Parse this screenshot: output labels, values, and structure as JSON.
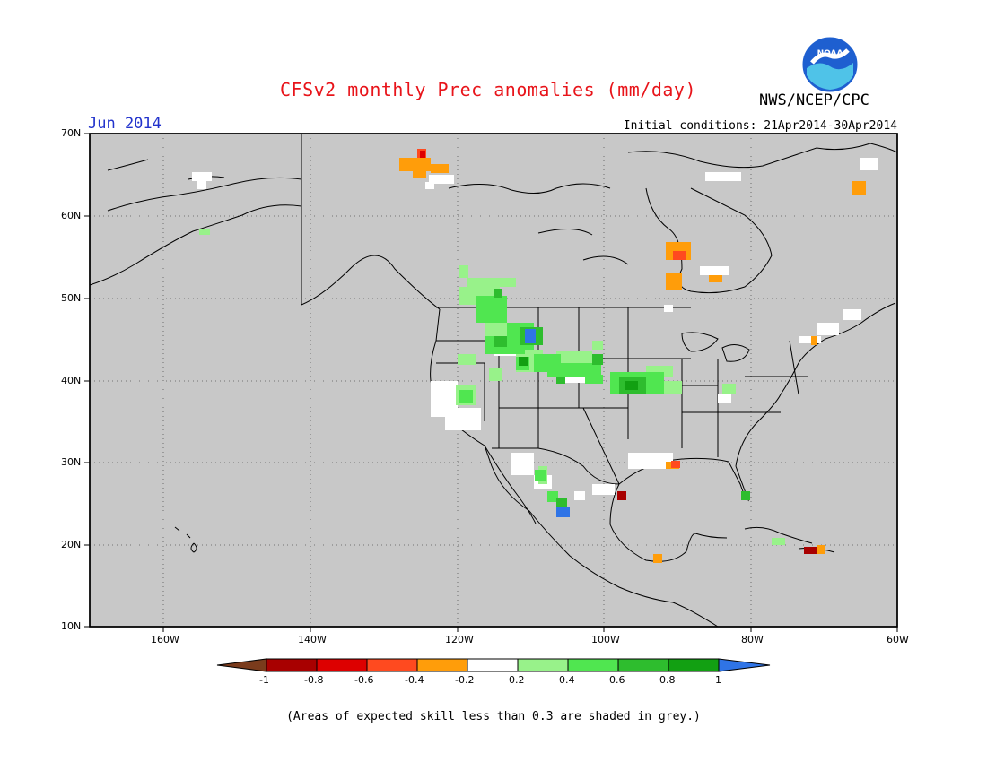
{
  "header": {
    "title": "CFSv2 monthly Prec anomalies (mm/day)",
    "agency": "NWS/NCEP/CPC",
    "month": "Jun 2014",
    "initial_conditions": "Initial conditions: 21Apr2014-30Apr2014",
    "logo_text": "NOAA"
  },
  "map": {
    "lat_labels": [
      "70N",
      "60N",
      "50N",
      "40N",
      "30N",
      "20N",
      "10N"
    ],
    "lon_labels": [
      "160W",
      "140W",
      "120W",
      "100W",
      "80W",
      "60W"
    ],
    "background_color": "#c8c8c8"
  },
  "colorbar": {
    "ticks": [
      "-1",
      "-0.8",
      "-0.6",
      "-0.4",
      "-0.2",
      "0.2",
      "0.4",
      "0.6",
      "0.8",
      "1"
    ],
    "colors": [
      "#7a3b1c",
      "#a80000",
      "#dd0000",
      "#ff4a1f",
      "#ff9d0a",
      "#ffffff",
      "#98f28a",
      "#50e650",
      "#2ebd2e",
      "#12a012",
      "#2f74e6"
    ]
  },
  "footnote": "(Areas of expected skill less than 0.3 are shaded in grey.)"
}
